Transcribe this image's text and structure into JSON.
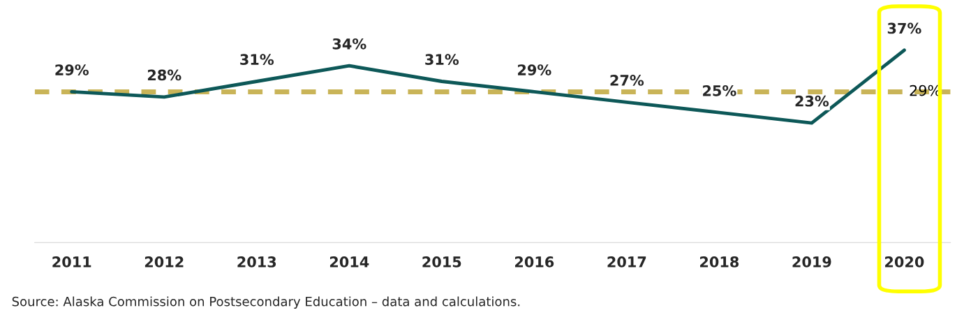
{
  "chart_data": {
    "type": "line",
    "categories": [
      "2011",
      "2012",
      "2013",
      "2014",
      "2015",
      "2016",
      "2017",
      "2018",
      "2019",
      "2020"
    ],
    "series": [
      {
        "color": "#0d5858",
        "values": [
          29,
          28,
          31,
          34,
          31,
          29,
          27,
          25,
          23,
          37
        ],
        "value_labels": [
          "29%",
          "28%",
          "31%",
          "34%",
          "31%",
          "29%",
          "27%",
          "25%",
          "23%",
          "37%"
        ]
      }
    ],
    "ref_lines": [
      {
        "axis": "y",
        "value": 29,
        "label": "29%",
        "color": "#c9b458",
        "line_style": "dashed"
      }
    ],
    "grid": false,
    "legend": false,
    "marker": "none",
    "line_style": "solid",
    "annotations": [
      "Source: Alaska Commission on Postsecondary Education – data and calculations."
    ]
  }
}
